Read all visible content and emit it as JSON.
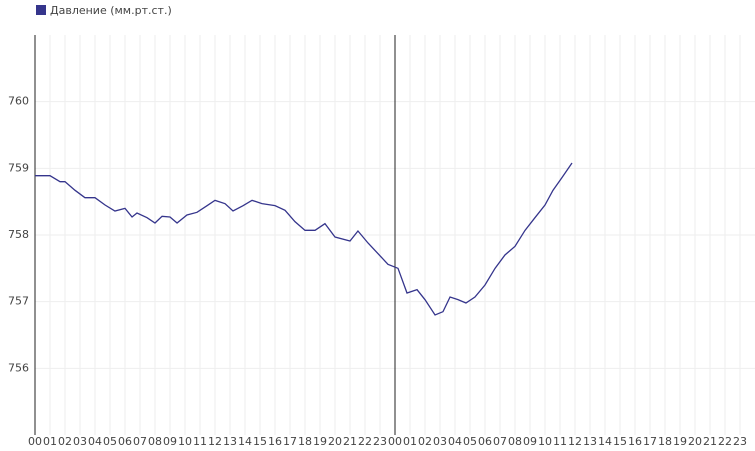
{
  "chart_data": {
    "type": "line",
    "series": [
      {
        "name": "Давление (мм.рт.ст.)",
        "color": "#35358c",
        "x": [
          0,
          1,
          1.67,
          2,
          2.67,
          3.33,
          4,
          4.67,
          5.33,
          6,
          6.47,
          6.8,
          7.47,
          8,
          8.47,
          9,
          9.47,
          10.13,
          10.8,
          11.47,
          12,
          12.67,
          13.2,
          13.87,
          14.47,
          15.13,
          16,
          16.67,
          17.33,
          18,
          18.67,
          19.33,
          20,
          21,
          21.53,
          22.2,
          22.87,
          23.53,
          24.2,
          24.8,
          25.47,
          26,
          26.67,
          27.2,
          27.67,
          28.2,
          28.73,
          29.33,
          30,
          30.67,
          31.33,
          32,
          32.67,
          33.33,
          34,
          34.53,
          35.13,
          35.8
        ],
        "values": [
          758.89,
          758.89,
          758.8,
          758.8,
          758.67,
          758.56,
          758.56,
          758.45,
          758.36,
          758.4,
          758.27,
          758.33,
          758.26,
          758.18,
          758.28,
          758.27,
          758.18,
          758.3,
          758.34,
          758.44,
          758.52,
          758.47,
          758.36,
          758.44,
          758.52,
          758.47,
          758.44,
          758.37,
          758.2,
          758.07,
          758.07,
          758.17,
          757.97,
          757.91,
          758.06,
          757.88,
          757.72,
          757.56,
          757.5,
          757.13,
          757.18,
          757.03,
          756.8,
          756.85,
          757.07,
          757.03,
          756.98,
          757.07,
          757.25,
          757.5,
          757.7,
          757.83,
          758.07,
          758.26,
          758.45,
          758.67,
          758.86,
          759.08
        ]
      }
    ],
    "xlim": [
      0,
      48
    ],
    "ylim": [
      755,
      761
    ],
    "yticks": [
      756,
      757,
      758,
      759,
      760
    ],
    "xticks": [
      {
        "value": 0,
        "label": "00"
      },
      {
        "value": 1,
        "label": "01"
      },
      {
        "value": 2,
        "label": "02"
      },
      {
        "value": 3,
        "label": "03"
      },
      {
        "value": 4,
        "label": "04"
      },
      {
        "value": 5,
        "label": "05"
      },
      {
        "value": 6,
        "label": "06"
      },
      {
        "value": 7,
        "label": "07"
      },
      {
        "value": 8,
        "label": "08"
      },
      {
        "value": 9,
        "label": "09"
      },
      {
        "value": 10,
        "label": "10"
      },
      {
        "value": 11,
        "label": "11"
      },
      {
        "value": 12,
        "label": "12"
      },
      {
        "value": 13,
        "label": "13"
      },
      {
        "value": 14,
        "label": "14"
      },
      {
        "value": 15,
        "label": "15"
      },
      {
        "value": 16,
        "label": "16"
      },
      {
        "value": 17,
        "label": "17"
      },
      {
        "value": 18,
        "label": "18"
      },
      {
        "value": 19,
        "label": "19"
      },
      {
        "value": 20,
        "label": "20"
      },
      {
        "value": 21,
        "label": "21"
      },
      {
        "value": 22,
        "label": "22"
      },
      {
        "value": 23,
        "label": "23"
      },
      {
        "value": 24,
        "label": "00"
      },
      {
        "value": 25,
        "label": "01"
      },
      {
        "value": 26,
        "label": "02"
      },
      {
        "value": 27,
        "label": "03"
      },
      {
        "value": 28,
        "label": "04"
      },
      {
        "value": 29,
        "label": "05"
      },
      {
        "value": 30,
        "label": "06"
      },
      {
        "value": 31,
        "label": "07"
      },
      {
        "value": 32,
        "label": "08"
      },
      {
        "value": 33,
        "label": "09"
      },
      {
        "value": 34,
        "label": "10"
      },
      {
        "value": 35,
        "label": "11"
      },
      {
        "value": 36,
        "label": "12"
      },
      {
        "value": 37,
        "label": "13"
      },
      {
        "value": 38,
        "label": "14"
      },
      {
        "value": 39,
        "label": "15"
      },
      {
        "value": 40,
        "label": "16"
      },
      {
        "value": 41,
        "label": "17"
      },
      {
        "value": 42,
        "label": "18"
      },
      {
        "value": 43,
        "label": "19"
      },
      {
        "value": 44,
        "label": "20"
      },
      {
        "value": 45,
        "label": "21"
      },
      {
        "value": 46,
        "label": "22"
      },
      {
        "value": 47,
        "label": "23"
      }
    ],
    "vline_x": 24,
    "grid": true
  }
}
